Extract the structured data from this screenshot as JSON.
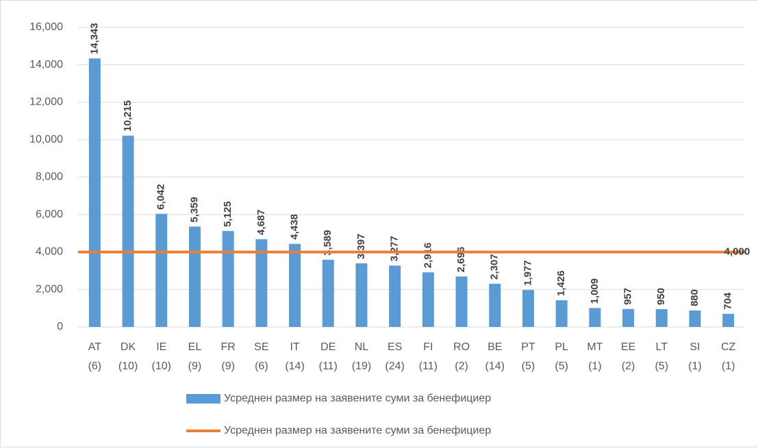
{
  "chart_data": {
    "type": "bar",
    "categories": [
      [
        "AT",
        "(6)"
      ],
      [
        "DK",
        "(10)"
      ],
      [
        "IE",
        "(10)"
      ],
      [
        "EL",
        "(9)"
      ],
      [
        "FR",
        "(9)"
      ],
      [
        "SE",
        "(6)"
      ],
      [
        "IT",
        "(14)"
      ],
      [
        "DE",
        "(11)"
      ],
      [
        "NL",
        "(19)"
      ],
      [
        "ES",
        "(24)"
      ],
      [
        "FI",
        "(11)"
      ],
      [
        "RO",
        "(2)"
      ],
      [
        "BE",
        "(14)"
      ],
      [
        "PT",
        "(5)"
      ],
      [
        "PL",
        "(5)"
      ],
      [
        "MT",
        "(1)"
      ],
      [
        "EE",
        "(2)"
      ],
      [
        "LT",
        "(5)"
      ],
      [
        "SI",
        "(1)"
      ],
      [
        "CZ",
        "(1)"
      ]
    ],
    "series": [
      {
        "name": "Усреднен размер на заявените суми за бенефициер",
        "type": "bar",
        "color": "#5b9bd5",
        "values": [
          14343,
          10215,
          6042,
          5359,
          5125,
          4687,
          4438,
          3589,
          3397,
          3277,
          2916,
          2696,
          2307,
          1977,
          1426,
          1009,
          957,
          950,
          880,
          704
        ],
        "value_labels": [
          "14,343",
          "10,215",
          "6,042",
          "5,359",
          "5,125",
          "4,687",
          "4,438",
          "3,589",
          "3,397",
          "3,277",
          "2,916",
          "2,696",
          "2,307",
          "1,977",
          "1,426",
          "1,009",
          "957",
          "950",
          "880",
          "704"
        ]
      },
      {
        "name": "Усреднен размер на заявените суми за бенефициер",
        "type": "line",
        "color": "#ed7d31",
        "values": [
          4000,
          4000,
          4000,
          4000,
          4000,
          4000,
          4000,
          4000,
          4000,
          4000,
          4000,
          4000,
          4000,
          4000,
          4000,
          4000,
          4000,
          4000,
          4000,
          4000
        ],
        "value_labels": [
          null,
          null,
          null,
          null,
          null,
          null,
          null,
          null,
          null,
          null,
          null,
          null,
          null,
          null,
          null,
          null,
          null,
          null,
          null,
          "4,000"
        ]
      }
    ],
    "ylim": [
      0,
      16000
    ],
    "yticks": [
      0,
      {
        "value": 2000,
        "label": "2,000"
      },
      {
        "value": 4000,
        "label": "4,000"
      },
      {
        "value": 6000,
        "label": "6,000"
      },
      {
        "value": 8000,
        "label": "8,000"
      },
      {
        "value": 10000,
        "label": "10,000"
      },
      {
        "value": 12000,
        "label": "12,000"
      },
      {
        "value": 14000,
        "label": "14,000"
      },
      {
        "value": 16000,
        "label": "16,000"
      }
    ],
    "grid": true
  }
}
